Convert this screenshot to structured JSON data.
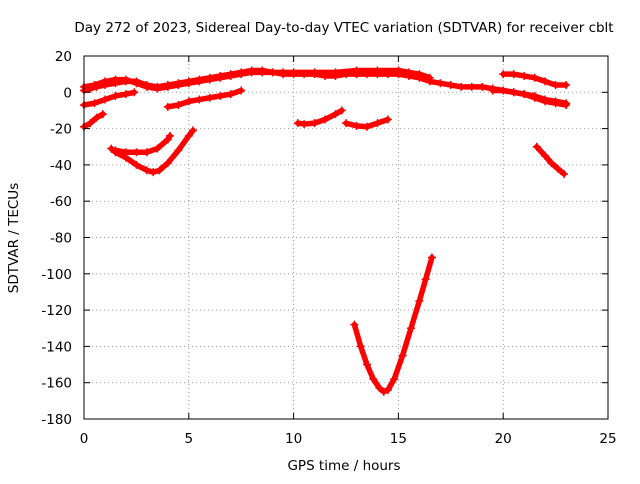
{
  "chart_data": {
    "type": "scatter",
    "title": "Day 272 of 2023, Sidereal Day-to-day VTEC variation (SDTVAR) for receiver cblt",
    "xlabel": "GPS time / hours",
    "ylabel": "SDTVAR / TECUs",
    "xlim": [
      0,
      25
    ],
    "ylim": [
      -180,
      20
    ],
    "xticks": [
      0,
      5,
      10,
      15,
      20,
      25
    ],
    "yticks": [
      20,
      0,
      -20,
      -40,
      -60,
      -80,
      -100,
      -120,
      -140,
      -160,
      -180
    ],
    "grid": true,
    "marker": "plus",
    "color": "#ff0000",
    "series": [
      {
        "points": [
          [
            0,
            3
          ],
          [
            0.5,
            4
          ],
          [
            1,
            6
          ],
          [
            1.5,
            7
          ],
          [
            2,
            7
          ],
          [
            2.5,
            5
          ],
          [
            3,
            3
          ],
          [
            3.5,
            2
          ],
          [
            4,
            3
          ],
          [
            4.5,
            4
          ],
          [
            5,
            5
          ],
          [
            5.5,
            6
          ],
          [
            6,
            7
          ],
          [
            6.5,
            8
          ],
          [
            7,
            9
          ],
          [
            7.5,
            10
          ],
          [
            8,
            11
          ],
          [
            8.5,
            11
          ],
          [
            9,
            11
          ],
          [
            9.5,
            10
          ],
          [
            10,
            10
          ],
          [
            10.5,
            10
          ],
          [
            11,
            10
          ],
          [
            11.5,
            9
          ],
          [
            12,
            9
          ],
          [
            12.5,
            10
          ],
          [
            13,
            10
          ],
          [
            13.5,
            10
          ],
          [
            14,
            10
          ],
          [
            14.5,
            10
          ],
          [
            15,
            10
          ],
          [
            15.5,
            9
          ],
          [
            16,
            8
          ],
          [
            16.5,
            6
          ],
          [
            17,
            5
          ],
          [
            17.5,
            4
          ],
          [
            18,
            3
          ],
          [
            18.5,
            3
          ],
          [
            19,
            3
          ],
          [
            19.5,
            2
          ],
          [
            20,
            1
          ],
          [
            20.5,
            0
          ],
          [
            21,
            -1
          ],
          [
            21.5,
            -3
          ],
          [
            22,
            -5
          ],
          [
            22.5,
            -6
          ],
          [
            23,
            -7
          ]
        ]
      },
      {
        "points": [
          [
            0,
            1
          ],
          [
            0.3,
            2
          ],
          [
            0.6,
            3
          ],
          [
            1,
            4
          ],
          [
            1.5,
            5
          ],
          [
            2,
            6
          ],
          [
            2.5,
            6
          ],
          [
            3,
            4
          ],
          [
            3.5,
            3
          ],
          [
            4,
            4
          ],
          [
            4.5,
            5
          ],
          [
            5,
            6
          ],
          [
            5.5,
            7
          ],
          [
            6,
            8
          ],
          [
            6.5,
            9
          ],
          [
            7,
            10
          ],
          [
            7.5,
            11
          ],
          [
            8,
            12
          ],
          [
            8.5,
            12
          ],
          [
            9,
            11
          ],
          [
            9.5,
            11
          ],
          [
            10,
            11
          ],
          [
            11,
            11
          ],
          [
            12,
            11
          ],
          [
            13,
            12
          ],
          [
            14,
            12
          ],
          [
            15,
            12
          ],
          [
            15.5,
            11
          ],
          [
            16,
            10
          ],
          [
            16.5,
            8
          ]
        ]
      },
      {
        "points": [
          [
            0,
            -7
          ],
          [
            0.5,
            -6
          ],
          [
            1,
            -4
          ],
          [
            1.5,
            -2
          ],
          [
            2,
            -1
          ],
          [
            2.4,
            0
          ]
        ]
      },
      {
        "points": [
          [
            0,
            -19
          ],
          [
            0.3,
            -17
          ],
          [
            0.6,
            -14
          ],
          [
            0.9,
            -12
          ]
        ]
      },
      {
        "points": [
          [
            4,
            -8
          ],
          [
            4.5,
            -7
          ],
          [
            5,
            -5
          ],
          [
            5.5,
            -4
          ],
          [
            6,
            -3
          ],
          [
            6.5,
            -2
          ],
          [
            7,
            -1
          ],
          [
            7.5,
            1
          ]
        ]
      },
      {
        "points": [
          [
            1.3,
            -31
          ],
          [
            1.5,
            -33
          ],
          [
            2,
            -36
          ],
          [
            2.5,
            -40
          ],
          [
            3,
            -43
          ],
          [
            3.3,
            -44
          ],
          [
            3.6,
            -43
          ],
          [
            4,
            -39
          ],
          [
            4.5,
            -32
          ],
          [
            5,
            -24
          ],
          [
            5.2,
            -21
          ]
        ]
      },
      {
        "points": [
          [
            1.5,
            -32
          ],
          [
            2,
            -33
          ],
          [
            2.5,
            -33
          ],
          [
            3,
            -33
          ],
          [
            3.5,
            -31
          ],
          [
            4,
            -26
          ],
          [
            4.1,
            -24
          ]
        ]
      },
      {
        "points": [
          [
            10.2,
            -17
          ],
          [
            10.5,
            -17.5
          ],
          [
            11,
            -17
          ],
          [
            11.5,
            -15
          ],
          [
            12,
            -12
          ],
          [
            12.3,
            -10
          ]
        ]
      },
      {
        "points": [
          [
            12.5,
            -17
          ],
          [
            13,
            -18.5
          ],
          [
            13.5,
            -19
          ],
          [
            14,
            -17
          ],
          [
            14.5,
            -15
          ]
        ]
      },
      {
        "points": [
          [
            12.9,
            -128
          ],
          [
            13.2,
            -140
          ],
          [
            13.5,
            -150
          ],
          [
            13.8,
            -158
          ],
          [
            14.1,
            -163
          ],
          [
            14.3,
            -165
          ],
          [
            14.5,
            -164
          ],
          [
            14.8,
            -158
          ],
          [
            15.2,
            -145
          ],
          [
            15.6,
            -130
          ],
          [
            16,
            -115
          ],
          [
            16.3,
            -103
          ],
          [
            16.6,
            -91
          ]
        ]
      },
      {
        "points": [
          [
            20,
            10
          ],
          [
            20.5,
            10
          ],
          [
            21,
            9
          ],
          [
            21.5,
            8
          ],
          [
            22,
            6
          ],
          [
            22.5,
            4
          ],
          [
            23,
            4
          ]
        ]
      },
      {
        "points": [
          [
            19.5,
            1
          ],
          [
            20,
            1
          ],
          [
            20.5,
            0
          ],
          [
            21,
            -1
          ],
          [
            21.5,
            -2
          ],
          [
            22,
            -4
          ],
          [
            22.5,
            -5
          ],
          [
            23,
            -6
          ]
        ]
      },
      {
        "points": [
          [
            21.6,
            -30
          ],
          [
            22,
            -35
          ],
          [
            22.3,
            -39
          ],
          [
            22.6,
            -42
          ],
          [
            22.9,
            -45
          ]
        ]
      }
    ]
  }
}
